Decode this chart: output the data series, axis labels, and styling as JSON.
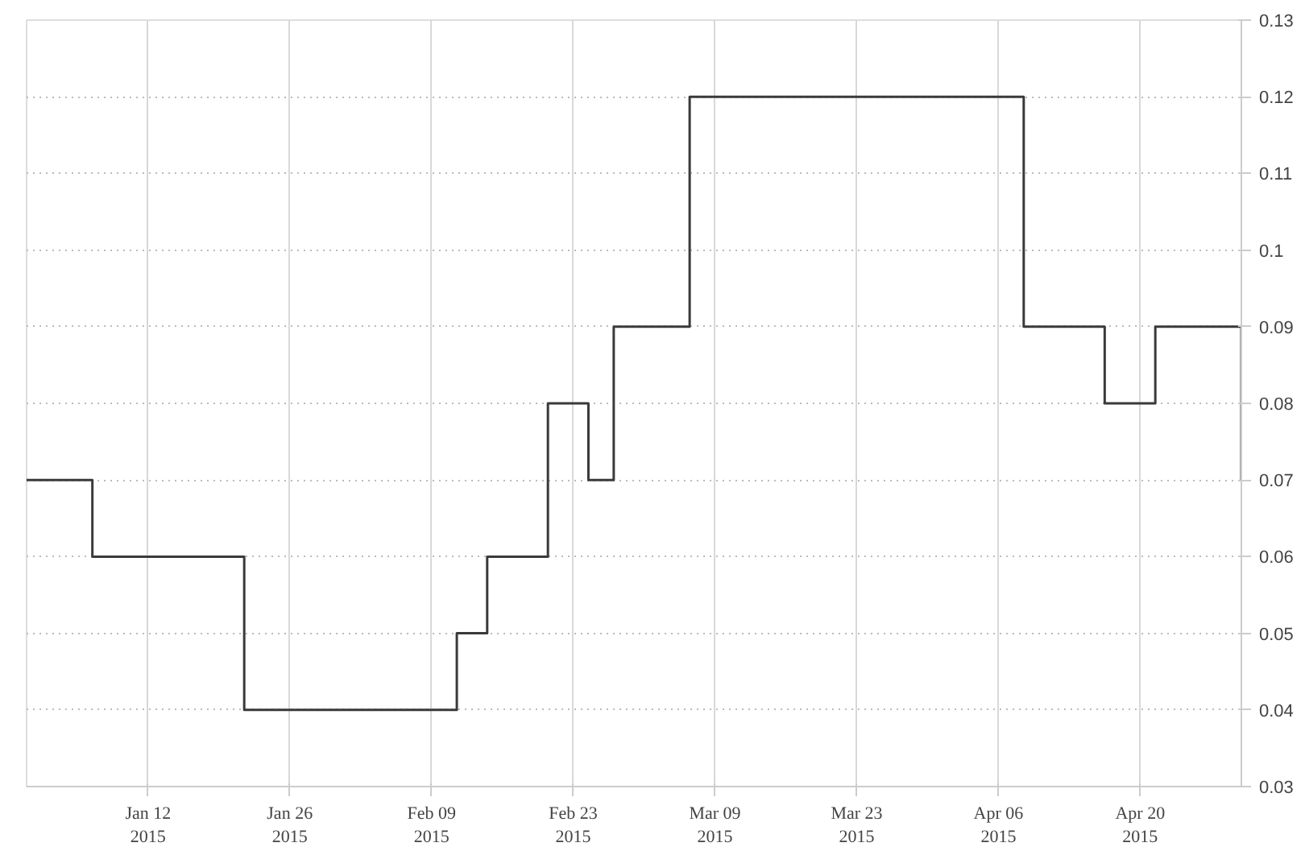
{
  "chart_data": {
    "type": "step",
    "x": [
      "2014-12-31",
      "2015-01-06T12:00",
      "2015-01-21T12:00",
      "2015-02-11T12:00",
      "2015-02-14T12:00",
      "2015-02-20T12:00",
      "2015-02-24T12:00",
      "2015-02-27",
      "2015-03-06T12:00",
      "2015-04-08T12:00",
      "2015-04-16T12:00",
      "2015-04-21T12:00",
      "2015-04-30"
    ],
    "series": [
      {
        "color": "#3a3a3a",
        "values": [
          0.07,
          0.06,
          0.04,
          0.05,
          0.06,
          0.08,
          0.07,
          0.09,
          0.12,
          0.09,
          0.08,
          0.09,
          0.07
        ]
      }
    ],
    "xlim": [
      "2014-12-31",
      "2015-04-30"
    ],
    "xticks": [
      {
        "value": "2015-01-12",
        "label": "Jan 12\n2015"
      },
      {
        "value": "2015-01-26",
        "label": "Jan 26\n2015"
      },
      {
        "value": "2015-02-09",
        "label": "Feb 09\n2015"
      },
      {
        "value": "2015-02-23",
        "label": "Feb 23\n2015"
      },
      {
        "value": "2015-03-09",
        "label": "Mar 09\n2015"
      },
      {
        "value": "2015-03-23",
        "label": "Mar 23\n2015"
      },
      {
        "value": "2015-04-06",
        "label": "Apr 06\n2015"
      },
      {
        "value": "2015-04-20",
        "label": "Apr 20\n2015"
      }
    ],
    "ylim": [
      0.03,
      0.13
    ],
    "yticks": [
      0.03,
      0.04,
      0.05,
      0.06,
      0.07,
      0.08,
      0.09,
      0.1,
      0.11,
      0.12,
      0.13
    ],
    "grid": true,
    "line_style": "solid"
  }
}
